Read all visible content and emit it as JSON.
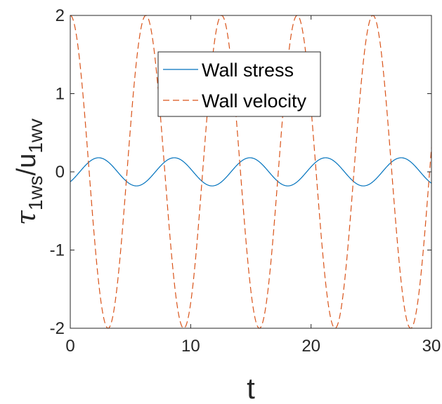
{
  "chart_data": {
    "type": "line",
    "title": "",
    "xlabel": "t",
    "ylabel": {
      "tau": "τ",
      "tau_sub": "1ws",
      "slash": "/u",
      "u_sub": "1wv"
    },
    "xlim": [
      0,
      30
    ],
    "ylim": [
      -2,
      2
    ],
    "xticks": [
      0,
      10,
      20,
      30
    ],
    "xtick_labels": [
      "0",
      "10",
      "20",
      "30"
    ],
    "yticks": [
      -2,
      -1,
      0,
      1,
      2
    ],
    "ytick_labels": [
      "-2",
      "-1",
      "0",
      "1",
      "2"
    ],
    "grid": false,
    "box": true,
    "legend": {
      "placement": "upper-center",
      "entries": [
        "Wall stress",
        "Wall velocity"
      ]
    },
    "series": [
      {
        "name": "Wall stress",
        "color": "#0072BD",
        "style": "solid",
        "function": "sin",
        "amplitude": 0.18,
        "omega": 1,
        "phase_rad": -0.785,
        "x_range": [
          0,
          30
        ]
      },
      {
        "name": "Wall velocity",
        "color": "#D95319",
        "style": "dashed",
        "function": "cos",
        "amplitude": 2,
        "omega": 1,
        "phase_rad": 0,
        "x_range": [
          0,
          30
        ]
      }
    ]
  }
}
